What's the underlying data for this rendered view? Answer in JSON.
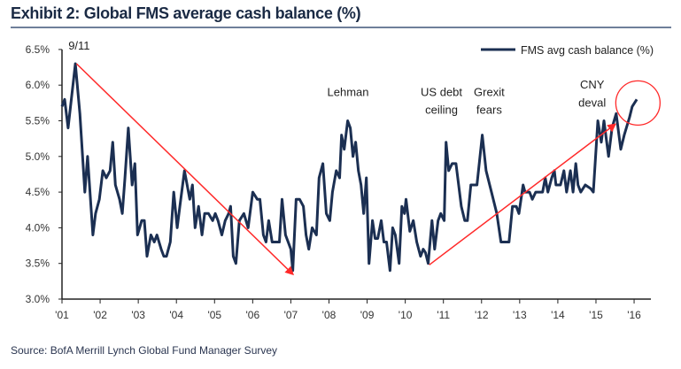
{
  "title": "Exhibit 2: Global FMS average cash balance (%)",
  "source": "Source: BofA Merrill Lynch Global Fund Manager Survey",
  "colors": {
    "line": "#1b2f52",
    "arrow": "#ff2a2a",
    "title": "#1a2a44"
  },
  "chart_data": {
    "type": "line",
    "title": "Exhibit 2: Global FMS average cash balance (%)",
    "xlabel": "",
    "ylabel": "",
    "xlim": [
      2001,
      2016.5
    ],
    "ylim": [
      3.0,
      6.5
    ],
    "yticks": [
      3.0,
      3.5,
      4.0,
      4.5,
      5.0,
      5.5,
      6.0,
      6.5
    ],
    "ytick_labels": [
      "3.0%",
      "3.5%",
      "4.0%",
      "4.5%",
      "5.0%",
      "5.5%",
      "6.0%",
      "6.5%"
    ],
    "xticks": [
      2001,
      2002,
      2003,
      2004,
      2005,
      2006,
      2007,
      2008,
      2009,
      2010,
      2011,
      2012,
      2013,
      2014,
      2015,
      2016
    ],
    "xtick_labels": [
      "'01",
      "'02",
      "'03",
      "'04",
      "'05",
      "'06",
      "'07",
      "'08",
      "'09",
      "'10",
      "'11",
      "'12",
      "'13",
      "'14",
      "'15",
      "'16"
    ],
    "grid": false,
    "legend": {
      "position": "top-right",
      "entries": [
        "FMS avg cash balance (%)"
      ]
    },
    "series": [
      {
        "name": "FMS avg cash balance (%)",
        "x": [
          2001.0,
          2001.07,
          2001.16,
          2001.35,
          2001.47,
          2001.6,
          2001.67,
          2001.81,
          2001.88,
          2001.98,
          2002.07,
          2002.16,
          2002.26,
          2002.33,
          2002.4,
          2002.51,
          2002.58,
          2002.65,
          2002.74,
          2002.84,
          2002.91,
          2002.98,
          2003.09,
          2003.16,
          2003.23,
          2003.33,
          2003.42,
          2003.49,
          2003.6,
          2003.67,
          2003.74,
          2003.84,
          2003.93,
          2004.02,
          2004.09,
          2004.21,
          2004.28,
          2004.35,
          2004.42,
          2004.49,
          2004.58,
          2004.67,
          2004.74,
          2004.84,
          2004.95,
          2005.02,
          2005.09,
          2005.19,
          2005.28,
          2005.37,
          2005.42,
          2005.49,
          2005.56,
          2005.65,
          2005.77,
          2005.88,
          2006.0,
          2006.12,
          2006.19,
          2006.28,
          2006.35,
          2006.42,
          2006.51,
          2006.58,
          2006.7,
          2006.77,
          2006.86,
          2006.93,
          2007.0,
          2007.05,
          2007.14,
          2007.23,
          2007.33,
          2007.4,
          2007.47,
          2007.56,
          2007.67,
          2007.74,
          2007.84,
          2007.93,
          2008.02,
          2008.09,
          2008.19,
          2008.28,
          2008.33,
          2008.4,
          2008.49,
          2008.56,
          2008.63,
          2008.7,
          2008.77,
          2008.84,
          2008.91,
          2008.98,
          2009.05,
          2009.14,
          2009.21,
          2009.28,
          2009.37,
          2009.44,
          2009.51,
          2009.6,
          2009.67,
          2009.74,
          2009.84,
          2009.91,
          2009.98,
          2010.02,
          2010.12,
          2010.21,
          2010.3,
          2010.4,
          2010.47,
          2010.53,
          2010.6,
          2010.7,
          2010.77,
          2010.86,
          2010.93,
          2011.02,
          2011.07,
          2011.14,
          2011.23,
          2011.33,
          2011.4,
          2011.47,
          2011.56,
          2011.63,
          2011.72,
          2011.81,
          2011.88,
          2012.02,
          2012.12,
          2012.26,
          2012.4,
          2012.51,
          2012.63,
          2012.72,
          2012.81,
          2012.91,
          2012.98,
          2013.09,
          2013.14,
          2013.26,
          2013.33,
          2013.42,
          2013.51,
          2013.6,
          2013.67,
          2013.74,
          2013.84,
          2013.91,
          2013.95,
          2014.07,
          2014.16,
          2014.23,
          2014.33,
          2014.4,
          2014.47,
          2014.53,
          2014.6,
          2014.72,
          2014.86,
          2014.93,
          2015.05,
          2015.14,
          2015.21,
          2015.33,
          2015.42,
          2015.53,
          2015.65,
          2015.74,
          2015.88,
          2015.95,
          2016.07
        ],
        "values": [
          5.7,
          5.8,
          5.4,
          6.3,
          5.6,
          4.5,
          5.0,
          3.9,
          4.2,
          4.4,
          4.8,
          4.7,
          4.8,
          5.2,
          4.6,
          4.4,
          4.2,
          4.7,
          5.4,
          4.6,
          4.9,
          3.9,
          4.1,
          4.1,
          3.6,
          3.9,
          3.8,
          3.9,
          3.7,
          3.6,
          3.6,
          3.8,
          4.5,
          4.0,
          4.3,
          4.8,
          4.6,
          4.4,
          4.6,
          4.0,
          4.3,
          3.9,
          4.2,
          4.2,
          4.1,
          4.2,
          4.1,
          3.9,
          4.1,
          4.2,
          4.3,
          3.6,
          3.5,
          4.1,
          4.2,
          4.0,
          4.5,
          4.4,
          4.4,
          3.9,
          3.8,
          4.1,
          3.8,
          3.8,
          3.8,
          4.4,
          3.9,
          3.8,
          3.7,
          3.4,
          4.4,
          4.4,
          4.3,
          3.9,
          3.7,
          4.0,
          3.9,
          4.7,
          4.9,
          4.2,
          4.1,
          4.5,
          4.8,
          4.7,
          5.3,
          5.1,
          5.5,
          5.4,
          5.0,
          5.2,
          4.8,
          4.6,
          4.2,
          4.7,
          3.5,
          4.1,
          3.85,
          3.85,
          4.1,
          3.8,
          3.8,
          3.4,
          4.0,
          3.9,
          3.5,
          4.3,
          4.2,
          4.4,
          3.95,
          4.1,
          3.8,
          3.6,
          3.7,
          3.65,
          3.5,
          4.1,
          3.7,
          4.1,
          4.2,
          4.1,
          5.2,
          4.8,
          4.9,
          4.9,
          4.6,
          4.3,
          4.1,
          4.1,
          4.6,
          4.6,
          4.6,
          5.3,
          4.8,
          4.5,
          4.2,
          3.8,
          3.8,
          3.8,
          4.3,
          4.3,
          4.2,
          4.6,
          4.5,
          4.5,
          4.4,
          4.5,
          4.5,
          4.5,
          4.7,
          4.5,
          4.7,
          4.8,
          4.6,
          4.6,
          4.8,
          4.5,
          4.8,
          4.5,
          4.9,
          4.6,
          4.5,
          4.6,
          4.55,
          4.5,
          5.5,
          5.2,
          5.5,
          5.0,
          5.4,
          5.6,
          5.1,
          5.3,
          5.55,
          5.7,
          5.8
        ]
      }
    ],
    "annotations": [
      {
        "text": "9/11",
        "x": 2001.45,
        "y": 6.5
      },
      {
        "text": "Lehman",
        "x": 2008.5,
        "y": 5.85
      },
      {
        "text": "US debt",
        "x": 2010.95,
        "y": 5.85
      },
      {
        "text": "ceiling",
        "x": 2010.95,
        "y": 5.6
      },
      {
        "text": "Grexit",
        "x": 2012.2,
        "y": 5.85
      },
      {
        "text": "fears",
        "x": 2012.2,
        "y": 5.6
      },
      {
        "text": "CNY",
        "x": 2014.9,
        "y": 5.95
      },
      {
        "text": "deval",
        "x": 2014.9,
        "y": 5.7
      }
    ],
    "arrows": [
      {
        "from": [
          2001.38,
          6.3
        ],
        "to": [
          2007.05,
          3.35
        ]
      },
      {
        "from": [
          2010.63,
          3.48
        ],
        "to": [
          2015.5,
          5.45
        ]
      }
    ],
    "highlight_circle": {
      "x": 2016.1,
      "y": 5.75
    }
  }
}
